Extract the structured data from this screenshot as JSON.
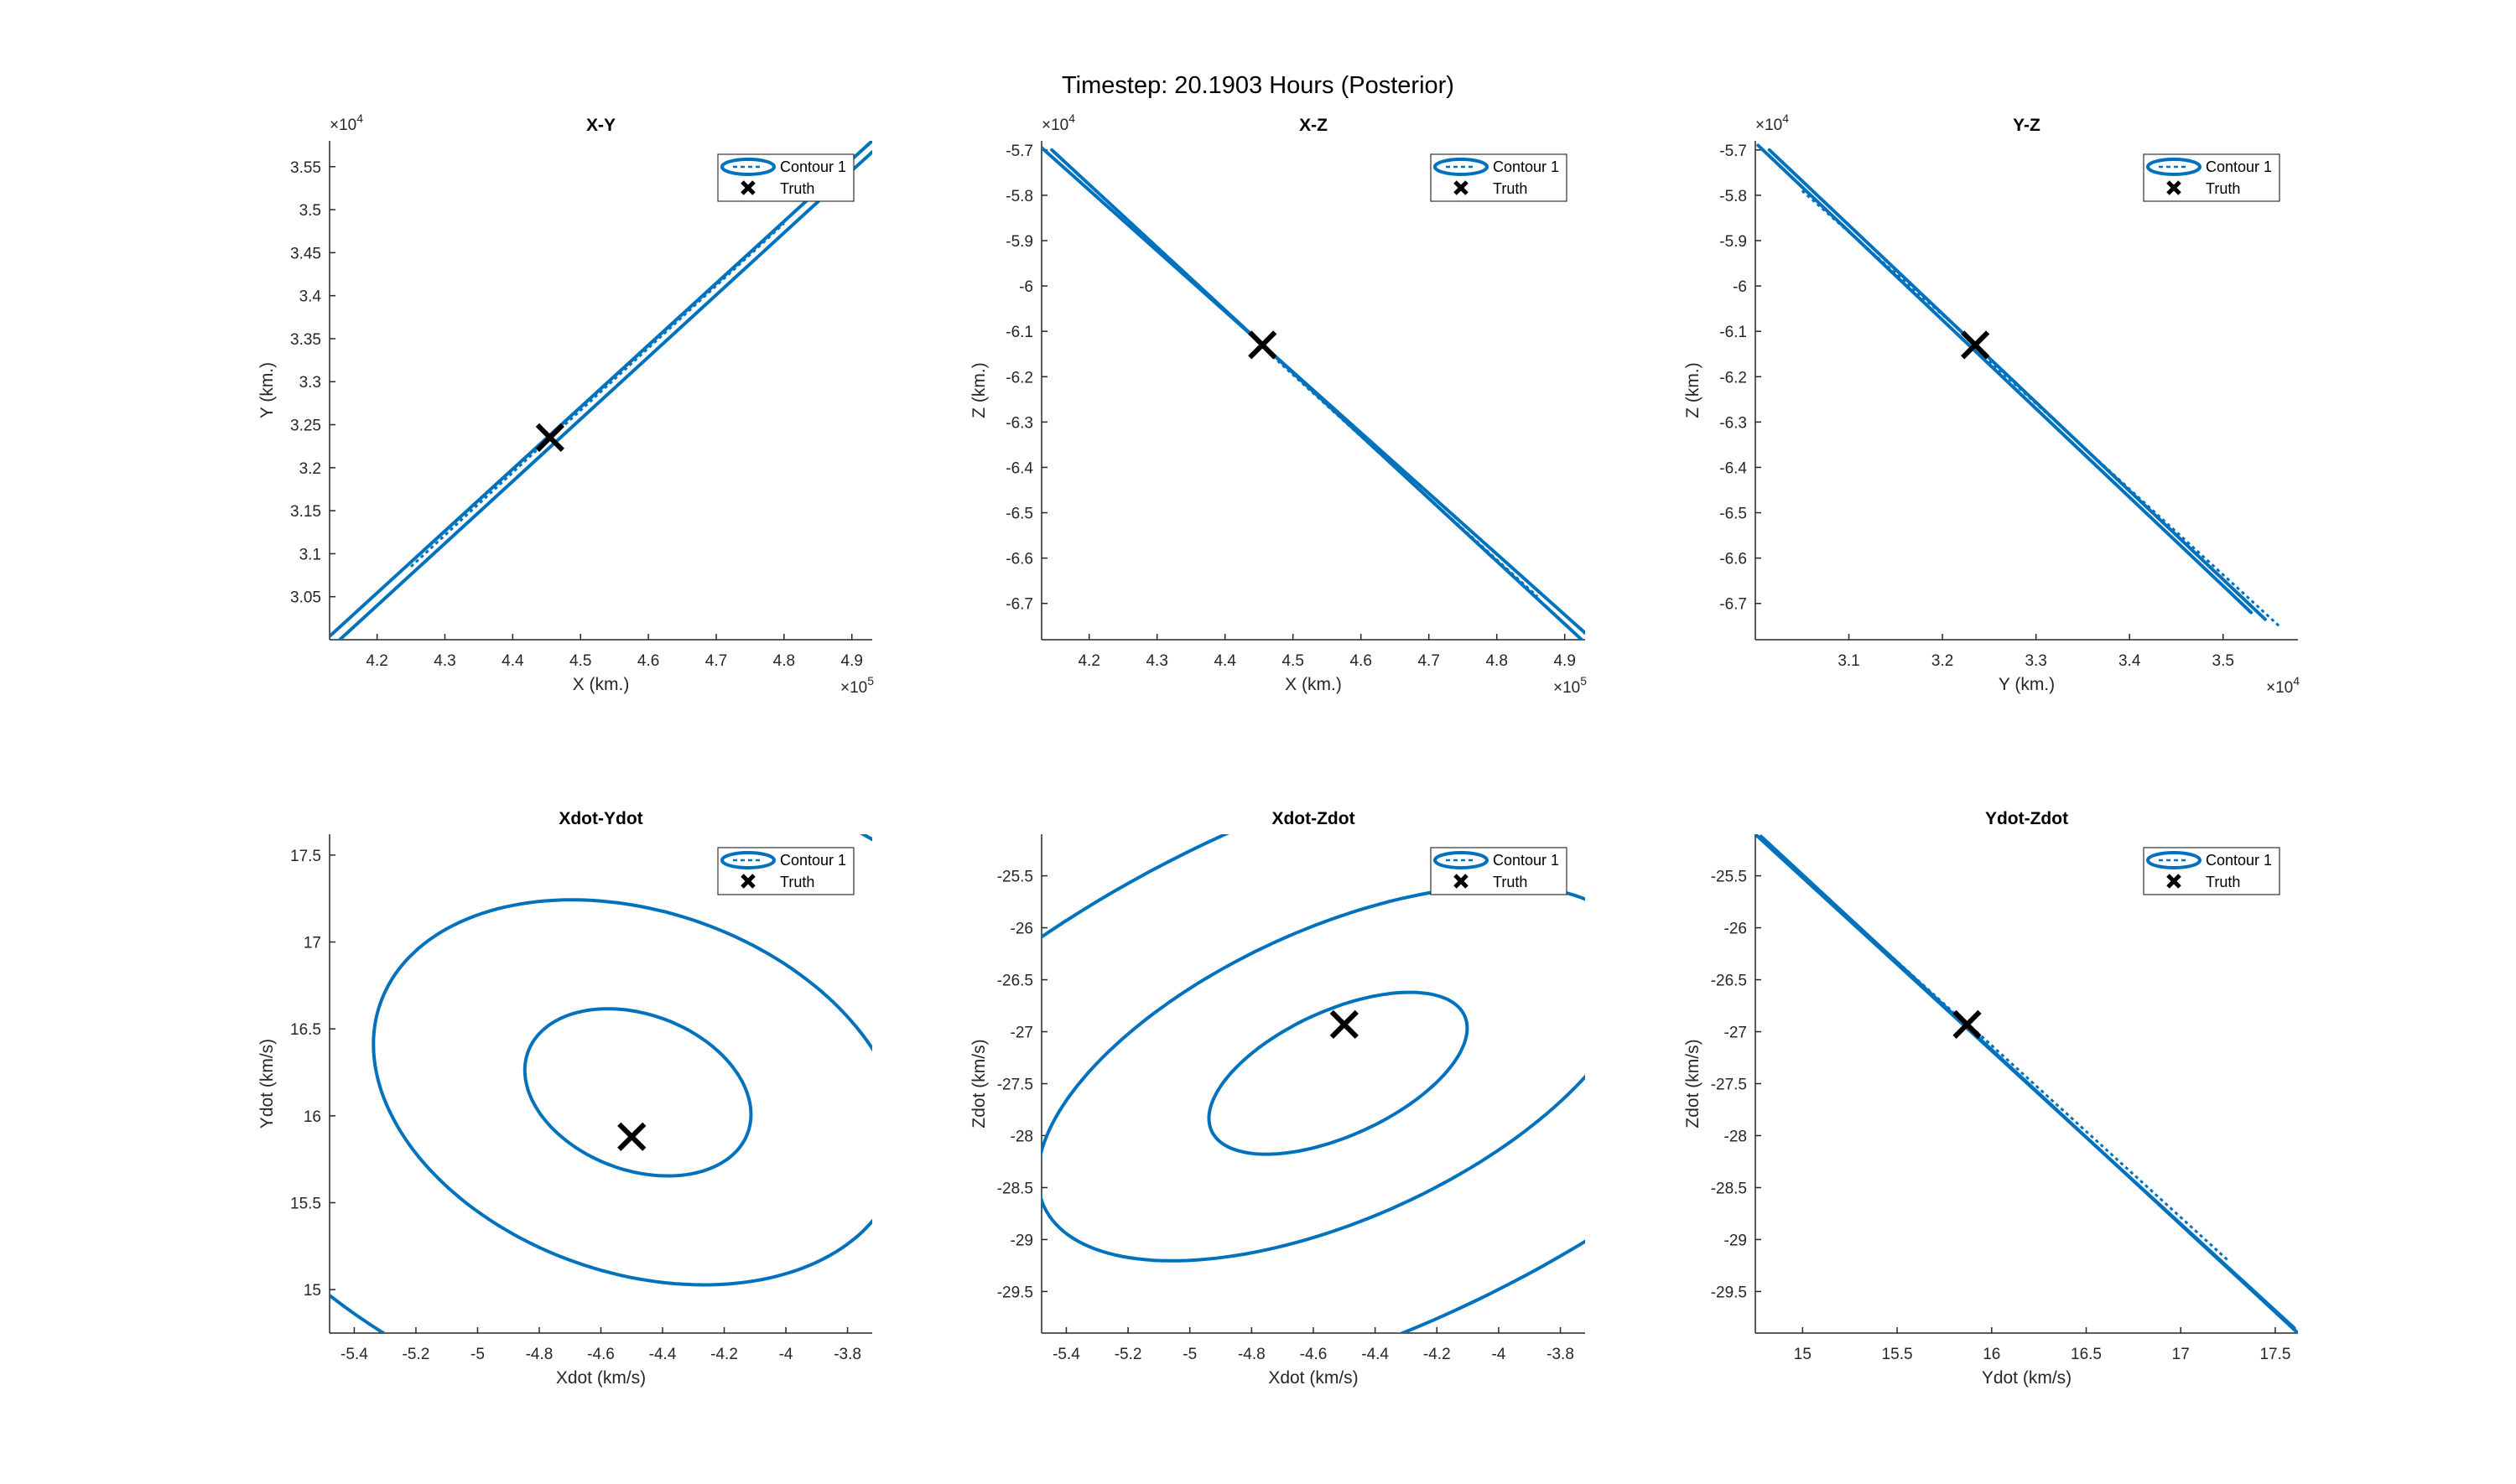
{
  "figure": {
    "title": "Timestep: 20.1903 Hours (Posterior)",
    "line_color": "#0072BD",
    "truth_color": "#000000"
  },
  "chart_data": [
    {
      "type": "line",
      "title": "X-Y",
      "xlabel": "X (km.)",
      "ylabel": "Y (km.)",
      "x_exponent": "5",
      "y_exponent": "4",
      "xlim": [
        4.13,
        4.93
      ],
      "ylim": [
        3.0,
        3.58
      ],
      "xticks": [
        "4.2",
        "4.3",
        "4.4",
        "4.5",
        "4.6",
        "4.7",
        "4.8",
        "4.9"
      ],
      "xtick_values": [
        4.2,
        4.3,
        4.4,
        4.5,
        4.6,
        4.7,
        4.8,
        4.9
      ],
      "yticks": [
        "3.05",
        "3.1",
        "3.15",
        "3.2",
        "3.25",
        "3.3",
        "3.35",
        "3.4",
        "3.45",
        "3.5",
        "3.55"
      ],
      "ytick_values": [
        3.05,
        3.1,
        3.15,
        3.2,
        3.25,
        3.3,
        3.35,
        3.4,
        3.45,
        3.5,
        3.55
      ],
      "legend": [
        "Contour 1",
        "Truth"
      ],
      "legend_placement": "top-right",
      "truth": [
        4.455,
        3.235
      ],
      "series": [
        {
          "kind": "line",
          "x": [
            4.13,
            4.93
          ],
          "y": [
            3.004,
            3.58
          ]
        },
        {
          "kind": "line",
          "x": [
            4.145,
            4.93
          ],
          "y": [
            3.0,
            3.567
          ]
        },
        {
          "kind": "dotted",
          "x": [
            4.25,
            4.45
          ],
          "y": [
            3.085,
            3.231
          ]
        },
        {
          "kind": "dotted",
          "x": [
            4.47,
            4.8
          ],
          "y": [
            3.245,
            3.484
          ]
        }
      ]
    },
    {
      "type": "line",
      "title": "X-Z",
      "xlabel": "X (km.)",
      "ylabel": "Z (km.)",
      "x_exponent": "5",
      "y_exponent": "4",
      "xlim": [
        4.13,
        4.93
      ],
      "ylim": [
        -6.78,
        -5.68
      ],
      "xticks": [
        "4.2",
        "4.3",
        "4.4",
        "4.5",
        "4.6",
        "4.7",
        "4.8",
        "4.9"
      ],
      "xtick_values": [
        4.2,
        4.3,
        4.4,
        4.5,
        4.6,
        4.7,
        4.8,
        4.9
      ],
      "yticks": [
        "-6.7",
        "-6.6",
        "-6.5",
        "-6.4",
        "-6.3",
        "-6.2",
        "-6.1",
        "-6",
        "-5.9",
        "-5.8",
        "-5.7"
      ],
      "ytick_values": [
        -6.7,
        -6.6,
        -6.5,
        -6.4,
        -6.3,
        -6.2,
        -6.1,
        -6.0,
        -5.9,
        -5.8,
        -5.7
      ],
      "legend": [
        "Contour 1",
        "Truth"
      ],
      "legend_placement": "top-right",
      "truth": [
        4.455,
        -6.13
      ],
      "series": [
        {
          "kind": "line",
          "x": [
            4.13,
            4.93
          ],
          "y": [
            -5.695,
            -6.765
          ]
        },
        {
          "kind": "line",
          "x": [
            4.145,
            4.925
          ],
          "y": [
            -5.7,
            -6.78
          ]
        },
        {
          "kind": "dotted",
          "x": [
            4.28,
            4.44
          ],
          "y": [
            -5.89,
            -6.11
          ]
        },
        {
          "kind": "dotted",
          "x": [
            4.47,
            4.86
          ],
          "y": [
            -6.155,
            -6.685
          ]
        }
      ]
    },
    {
      "type": "line",
      "title": "Y-Z",
      "xlabel": "Y (km.)",
      "ylabel": "Z (km.)",
      "x_exponent": "4",
      "y_exponent": "4",
      "xlim": [
        3.0,
        3.58
      ],
      "ylim": [
        -6.78,
        -5.68
      ],
      "xticks": [
        "3.1",
        "3.2",
        "3.3",
        "3.4",
        "3.5"
      ],
      "xtick_values": [
        3.1,
        3.2,
        3.3,
        3.4,
        3.5
      ],
      "yticks": [
        "-6.7",
        "-6.6",
        "-6.5",
        "-6.4",
        "-6.3",
        "-6.2",
        "-6.1",
        "-6",
        "-5.9",
        "-5.8",
        "-5.7"
      ],
      "ytick_values": [
        -6.7,
        -6.6,
        -6.5,
        -6.4,
        -6.3,
        -6.2,
        -6.1,
        -6.0,
        -5.9,
        -5.8,
        -5.7
      ],
      "legend": [
        "Contour 1",
        "Truth"
      ],
      "legend_placement": "top-right",
      "truth": [
        3.235,
        -6.13
      ],
      "series": [
        {
          "kind": "line",
          "x": [
            3.003,
            3.53
          ],
          "y": [
            -5.69,
            -6.72
          ]
        },
        {
          "kind": "line",
          "x": [
            3.015,
            3.545
          ],
          "y": [
            -5.7,
            -6.735
          ]
        },
        {
          "kind": "dotted",
          "x": [
            3.05,
            3.22
          ],
          "y": [
            -5.79,
            -6.1
          ]
        },
        {
          "kind": "dotted",
          "x": [
            3.25,
            3.56
          ],
          "y": [
            -6.165,
            -6.75
          ]
        }
      ]
    },
    {
      "type": "line",
      "title": "Xdot-Ydot",
      "xlabel": "Xdot (km/s)",
      "ylabel": "Ydot (km/s)",
      "xlim": [
        -5.48,
        -3.72
      ],
      "ylim": [
        14.75,
        17.62
      ],
      "xticks": [
        "-5.4",
        "-5.2",
        "-5",
        "-4.8",
        "-4.6",
        "-4.4",
        "-4.2",
        "-4",
        "-3.8"
      ],
      "xtick_values": [
        -5.4,
        -5.2,
        -5.0,
        -4.8,
        -4.6,
        -4.4,
        -4.2,
        -4.0,
        -3.8
      ],
      "yticks": [
        "15",
        "15.5",
        "16",
        "16.5",
        "17",
        "17.5"
      ],
      "ytick_values": [
        15.0,
        15.5,
        16.0,
        16.5,
        17.0,
        17.5
      ],
      "legend": [
        "Contour 1",
        "Truth"
      ],
      "legend_placement": "top-right",
      "truth": [
        -4.5,
        15.88
      ],
      "series": [
        {
          "kind": "ellipse",
          "center": [
            -4.48,
            16.135
          ],
          "rx": 0.34,
          "ry": 0.5,
          "rotation_deg": 22
        },
        {
          "kind": "ellipse",
          "center": [
            -4.48,
            16.135
          ],
          "rx": 0.8,
          "ry": 1.15,
          "rotation_deg": 22
        },
        {
          "kind": "ellipse",
          "center": [
            -4.48,
            16.135
          ],
          "rx": 1.45,
          "ry": 2.1,
          "rotation_deg": 22
        }
      ]
    },
    {
      "type": "line",
      "title": "Xdot-Zdot",
      "xlabel": "Xdot (km/s)",
      "ylabel": "Zdot (km/s)",
      "xlim": [
        -5.48,
        -3.72
      ],
      "ylim": [
        -29.9,
        -25.1
      ],
      "xticks": [
        "-5.4",
        "-5.2",
        "-5",
        "-4.8",
        "-4.6",
        "-4.4",
        "-4.2",
        "-4",
        "-3.8"
      ],
      "xtick_values": [
        -5.4,
        -5.2,
        -5.0,
        -4.8,
        -4.6,
        -4.4,
        -4.2,
        -4.0,
        -3.8
      ],
      "yticks": [
        "-29.5",
        "-29",
        "-28.5",
        "-28",
        "-27.5",
        "-27",
        "-26.5",
        "-26",
        "-25.5"
      ],
      "ytick_values": [
        -29.5,
        -29.0,
        -28.5,
        -28.0,
        -27.5,
        -27.0,
        -26.5,
        -26.0,
        -25.5
      ],
      "legend": [
        "Contour 1",
        "Truth"
      ],
      "legend_placement": "top-right",
      "truth": [
        -4.5,
        -26.93
      ],
      "series": [
        {
          "kind": "ellipse",
          "center": [
            -4.52,
            -27.4
          ],
          "rx": 0.33,
          "ry": 0.82,
          "rotation_deg": -20
        },
        {
          "kind": "ellipse",
          "center": [
            -4.52,
            -27.4
          ],
          "rx": 0.77,
          "ry": 1.9,
          "rotation_deg": -20
        },
        {
          "kind": "ellipse",
          "center": [
            -4.52,
            -27.4
          ],
          "rx": 1.4,
          "ry": 3.45,
          "rotation_deg": -20
        }
      ]
    },
    {
      "type": "line",
      "title": "Ydot-Zdot",
      "xlabel": "Ydot (km/s)",
      "ylabel": "Zdot (km/s)",
      "xlim": [
        14.75,
        17.62
      ],
      "ylim": [
        -29.9,
        -25.1
      ],
      "xticks": [
        "15",
        "15.5",
        "16",
        "16.5",
        "17",
        "17.5"
      ],
      "xtick_values": [
        15.0,
        15.5,
        16.0,
        16.5,
        17.0,
        17.5
      ],
      "yticks": [
        "-29.5",
        "-29",
        "-28.5",
        "-28",
        "-27.5",
        "-27",
        "-26.5",
        "-26",
        "-25.5"
      ],
      "ytick_values": [
        -29.5,
        -29.0,
        -28.5,
        -28.0,
        -27.5,
        -27.0,
        -26.5,
        -26.0,
        -25.5
      ],
      "legend": [
        "Contour 1",
        "Truth"
      ],
      "legend_placement": "top-right",
      "truth": [
        15.87,
        -26.93
      ],
      "series": [
        {
          "kind": "line",
          "x": [
            14.75,
            17.6
          ],
          "y": [
            -25.1,
            -29.85
          ]
        },
        {
          "kind": "line",
          "x": [
            14.78,
            17.62
          ],
          "y": [
            -25.12,
            -29.9
          ]
        },
        {
          "kind": "dotted",
          "x": [
            14.95,
            15.85
          ],
          "y": [
            -25.42,
            -26.9
          ]
        },
        {
          "kind": "dotted",
          "x": [
            15.92,
            17.25
          ],
          "y": [
            -27.0,
            -29.2
          ]
        }
      ]
    }
  ]
}
